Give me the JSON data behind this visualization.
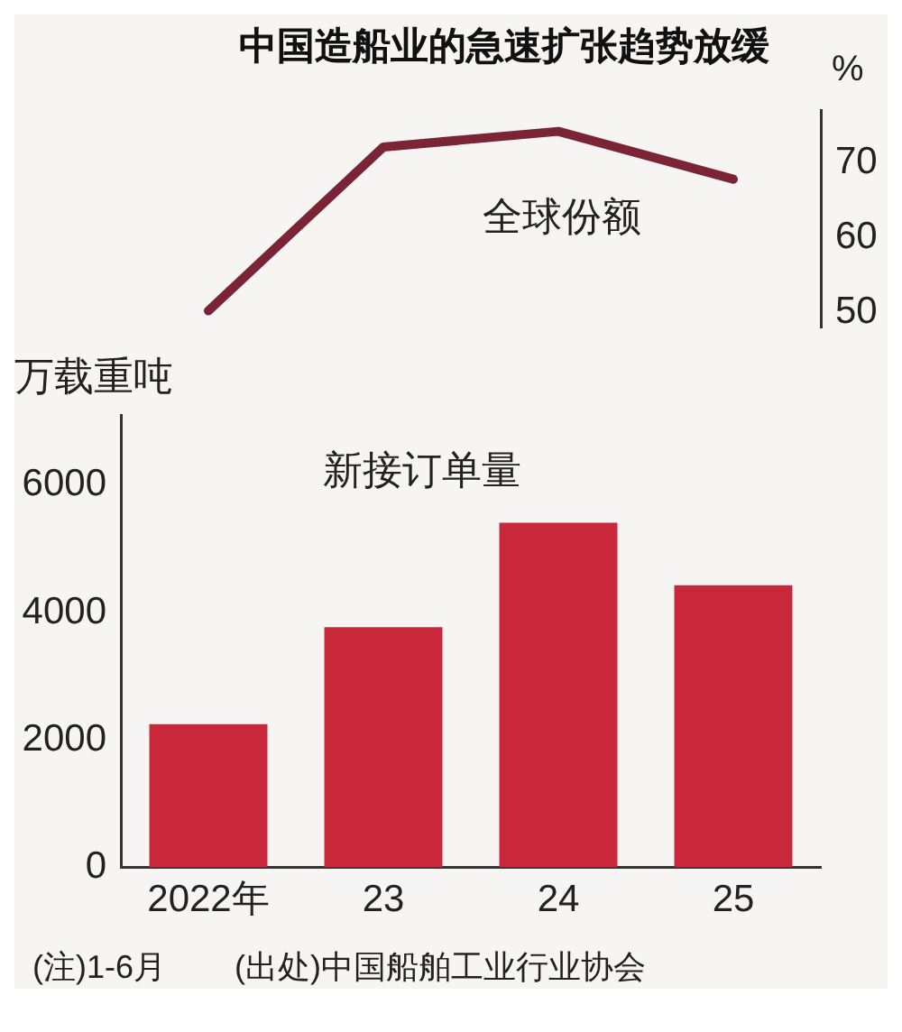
{
  "chart_data": [
    {
      "type": "line",
      "title": "中国造船业的急速扩张趋势放缓",
      "ylabel": "%",
      "categories": [
        null,
        null,
        null,
        null
      ],
      "series": [
        {
          "name": "全球份额",
          "color": "#7a2435",
          "values": [
            50.2,
            72.1,
            74.2,
            67.8
          ]
        }
      ],
      "ylim": [
        48,
        77
      ],
      "yticks": [
        50,
        60,
        70
      ],
      "tick_labels": "y",
      "grid": false,
      "legend": false,
      "marker": "none"
    },
    {
      "type": "bar",
      "title": "新接订单量",
      "ylabel": "万载重吨",
      "categories": [
        "2022年",
        "23",
        "24",
        "25"
      ],
      "values": [
        2250,
        3770,
        5410,
        4430
      ],
      "color": "#c8283a",
      "ylim": [
        0,
        7100
      ],
      "yticks": [
        0,
        2000,
        4000,
        6000
      ],
      "grid": false,
      "legend": false,
      "annotations": [
        "(注)1-6月",
        "(出处)中国船舶工业行业协会"
      ]
    }
  ]
}
